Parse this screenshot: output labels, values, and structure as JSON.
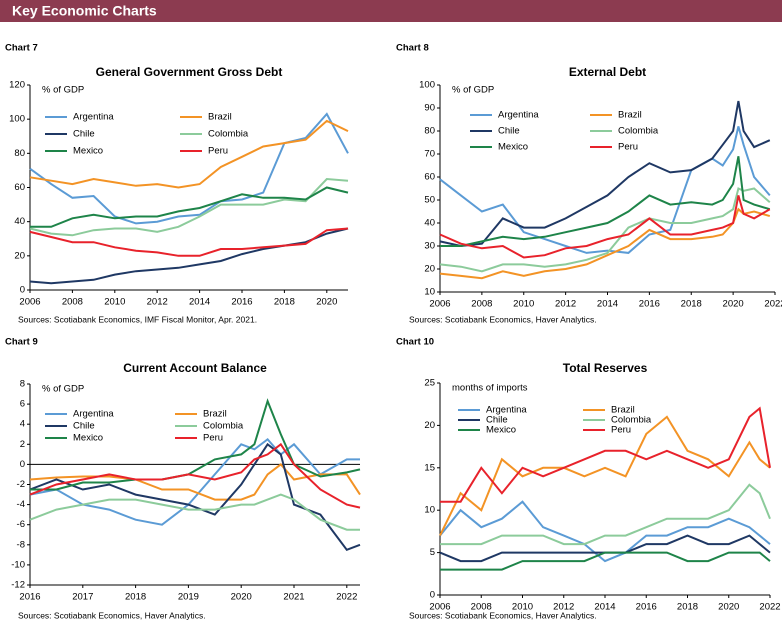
{
  "header": {
    "title": "Key Economic Charts"
  },
  "chart_data": [
    {
      "type": "line",
      "chart_label": "Chart 7",
      "title": "General Government Gross Debt",
      "ylabel": "% of GDP",
      "source": "Sources: Scotiabank Economics, IMF Fiscal Monitor, Apr. 2021.",
      "x": [
        2006,
        2007,
        2008,
        2009,
        2010,
        2011,
        2012,
        2013,
        2014,
        2015,
        2016,
        2017,
        2018,
        2019,
        2020,
        2021
      ],
      "xlim": [
        2006,
        2021
      ],
      "xticks": [
        2006,
        2008,
        2010,
        2012,
        2014,
        2016,
        2018,
        2020
      ],
      "ylim": [
        0,
        120
      ],
      "yticks": [
        0,
        20,
        40,
        60,
        80,
        100,
        120
      ],
      "series": [
        {
          "name": "Argentina",
          "color": "#5b9bd5",
          "values": [
            71,
            62,
            54,
            55,
            43,
            39,
            40,
            43,
            44,
            52,
            53,
            57,
            86,
            89,
            103,
            80
          ]
        },
        {
          "name": "Brazil",
          "color": "#f39325",
          "values": [
            66,
            64,
            62,
            65,
            63,
            61,
            62,
            60,
            62,
            72,
            78,
            84,
            86,
            88,
            99,
            93
          ]
        },
        {
          "name": "Chile",
          "color": "#1f3864",
          "values": [
            5,
            4,
            5,
            6,
            9,
            11,
            12,
            13,
            15,
            17,
            21,
            24,
            26,
            28,
            33,
            36
          ]
        },
        {
          "name": "Colombia",
          "color": "#8ccb9b",
          "values": [
            36,
            33,
            32,
            35,
            36,
            36,
            34,
            37,
            43,
            50,
            50,
            50,
            53,
            52,
            65,
            64
          ]
        },
        {
          "name": "Mexico",
          "color": "#1e8449",
          "values": [
            37,
            37,
            42,
            44,
            42,
            43,
            43,
            46,
            48,
            52,
            56,
            54,
            54,
            53,
            60,
            57
          ]
        },
        {
          "name": "Peru",
          "color": "#e8222b",
          "values": [
            34,
            31,
            28,
            28,
            25,
            23,
            22,
            20,
            20,
            24,
            24,
            25,
            26,
            27,
            35,
            36
          ]
        }
      ]
    },
    {
      "type": "line",
      "chart_label": "Chart 8",
      "title": "External Debt",
      "ylabel": "% of GDP",
      "source": "Sources: Scotiabank Economics, Haver Analytics.",
      "x": [
        2006,
        2007,
        2008,
        2009,
        2010,
        2011,
        2012,
        2013,
        2014,
        2015,
        2016,
        2017,
        2018,
        2019,
        2019.5,
        2020,
        2020.25,
        2020.5,
        2021,
        2021.75
      ],
      "xlim": [
        2006,
        2022
      ],
      "xticks": [
        2006,
        2008,
        2010,
        2012,
        2014,
        2016,
        2018,
        2020,
        2022
      ],
      "ylim": [
        10,
        100
      ],
      "yticks": [
        10,
        20,
        30,
        40,
        50,
        60,
        70,
        80,
        90,
        100
      ],
      "series": [
        {
          "name": "Argentina",
          "color": "#5b9bd5",
          "values": [
            59,
            52,
            45,
            48,
            36,
            33,
            30,
            27,
            28,
            27,
            35,
            37,
            63,
            68,
            65,
            72,
            82,
            74,
            60,
            52
          ]
        },
        {
          "name": "Brazil",
          "color": "#f39325",
          "values": [
            18,
            17,
            16,
            19,
            17,
            19,
            20,
            22,
            26,
            30,
            37,
            33,
            33,
            34,
            35,
            40,
            46,
            44,
            45,
            43
          ]
        },
        {
          "name": "Chile",
          "color": "#1f3864",
          "values": [
            32,
            30,
            31,
            42,
            38,
            38,
            42,
            47,
            52,
            60,
            66,
            62,
            63,
            68,
            74,
            80,
            93,
            80,
            73,
            76
          ]
        },
        {
          "name": "Colombia",
          "color": "#8ccb9b",
          "values": [
            22,
            21,
            19,
            22,
            22,
            21,
            22,
            24,
            27,
            38,
            42,
            40,
            40,
            42,
            43,
            46,
            55,
            54,
            55,
            49
          ]
        },
        {
          "name": "Mexico",
          "color": "#1e8449",
          "values": [
            30,
            30,
            32,
            34,
            33,
            34,
            36,
            38,
            40,
            45,
            52,
            48,
            49,
            48,
            50,
            57,
            69,
            50,
            48,
            46
          ]
        },
        {
          "name": "Peru",
          "color": "#e8222b",
          "values": [
            35,
            31,
            29,
            30,
            25,
            26,
            29,
            30,
            33,
            35,
            42,
            35,
            35,
            37,
            38,
            40,
            52,
            44,
            42,
            46
          ]
        }
      ]
    },
    {
      "type": "line",
      "chart_label": "Chart 9",
      "title": "Current Account Balance",
      "ylabel": "% of GDP",
      "source": "Sources: Scotiabank Economics, Haver Analytics.",
      "x": [
        2016,
        2016.5,
        2017,
        2017.5,
        2018,
        2018.5,
        2019,
        2019.5,
        2020,
        2020.25,
        2020.5,
        2020.75,
        2021,
        2021.5,
        2022,
        2022.25
      ],
      "xlim": [
        2016,
        2022.25
      ],
      "xticks": [
        2016,
        2017,
        2018,
        2019,
        2020,
        2021,
        2022
      ],
      "ylim": [
        -12,
        8
      ],
      "yticks": [
        -12,
        -10,
        -8,
        -6,
        -4,
        -2,
        0,
        2,
        4,
        6,
        8
      ],
      "series": [
        {
          "name": "Argentina",
          "color": "#5b9bd5",
          "values": [
            -3,
            -2.5,
            -4,
            -4.5,
            -5.5,
            -6,
            -4,
            -1,
            2,
            1.5,
            2.5,
            1,
            2,
            -1,
            0.5,
            0.5
          ]
        },
        {
          "name": "Brazil",
          "color": "#f39325",
          "values": [
            -1.5,
            -1.3,
            -1.2,
            -1.2,
            -1.5,
            -2.5,
            -2.5,
            -3.5,
            -3.5,
            -3,
            -1,
            0,
            -1.5,
            -1,
            -1,
            -3
          ]
        },
        {
          "name": "Chile",
          "color": "#1f3864",
          "values": [
            -2.5,
            -1.5,
            -2.5,
            -2,
            -3,
            -3.5,
            -4,
            -5,
            -2,
            0,
            2,
            1,
            -4,
            -5,
            -8.5,
            -8
          ]
        },
        {
          "name": "Colombia",
          "color": "#8ccb9b",
          "values": [
            -5.5,
            -4.5,
            -4,
            -3.5,
            -3.5,
            -4,
            -4.5,
            -4.5,
            -4,
            -4,
            -3.5,
            -3,
            -3.5,
            -5.5,
            -6.5,
            -6.5
          ]
        },
        {
          "name": "Mexico",
          "color": "#1e8449",
          "values": [
            -2.5,
            -2.5,
            -1.8,
            -1.8,
            -1.5,
            -1.5,
            -1,
            0.5,
            1,
            2,
            6.3,
            3,
            0,
            -1.2,
            -0.8,
            -0.5
          ]
        },
        {
          "name": "Peru",
          "color": "#e8222b",
          "values": [
            -3,
            -2,
            -1.5,
            -1,
            -1.5,
            -1.5,
            -1,
            -1.5,
            -0.8,
            0.5,
            1,
            2,
            0,
            -2.5,
            -4,
            -4.3
          ]
        }
      ]
    },
    {
      "type": "line",
      "chart_label": "Chart 10",
      "title": "Total Reserves",
      "ylabel": "months of imports",
      "source": "Sources: Scotiabank Economics, Haver Analytics.",
      "x": [
        2006,
        2007,
        2008,
        2009,
        2010,
        2011,
        2012,
        2013,
        2014,
        2015,
        2016,
        2017,
        2018,
        2019,
        2020,
        2021,
        2021.5,
        2022
      ],
      "xlim": [
        2006,
        2022
      ],
      "xticks": [
        2006,
        2008,
        2010,
        2012,
        2014,
        2016,
        2018,
        2020,
        2022
      ],
      "ylim": [
        0,
        25
      ],
      "yticks": [
        0,
        5,
        10,
        15,
        20,
        25
      ],
      "series": [
        {
          "name": "Argentina",
          "color": "#5b9bd5",
          "values": [
            7,
            10,
            8,
            9,
            11,
            8,
            7,
            6,
            4,
            5,
            7,
            7,
            8,
            8,
            9,
            8,
            7,
            6
          ]
        },
        {
          "name": "Brazil",
          "color": "#f39325",
          "values": [
            7,
            12,
            10,
            16,
            14,
            15,
            15,
            14,
            15,
            14,
            19,
            21,
            17,
            16,
            14,
            18,
            16,
            15
          ]
        },
        {
          "name": "Chile",
          "color": "#1f3864",
          "values": [
            5,
            4,
            4,
            5,
            5,
            5,
            5,
            5,
            5,
            5,
            6,
            6,
            7,
            6,
            6,
            7,
            6,
            5
          ]
        },
        {
          "name": "Colombia",
          "color": "#8ccb9b",
          "values": [
            6,
            6,
            6,
            7,
            7,
            7,
            6,
            6,
            7,
            7,
            8,
            9,
            9,
            9,
            10,
            13,
            12,
            9
          ]
        },
        {
          "name": "Mexico",
          "color": "#1e8449",
          "values": [
            3,
            3,
            3,
            3,
            4,
            4,
            4,
            4,
            5,
            5,
            5,
            5,
            4,
            4,
            5,
            5,
            5,
            4
          ]
        },
        {
          "name": "Peru",
          "color": "#e8222b",
          "values": [
            11,
            11,
            15,
            12,
            15,
            14,
            15,
            16,
            17,
            17,
            16,
            17,
            16,
            15,
            16,
            21,
            22,
            15
          ]
        }
      ]
    }
  ]
}
